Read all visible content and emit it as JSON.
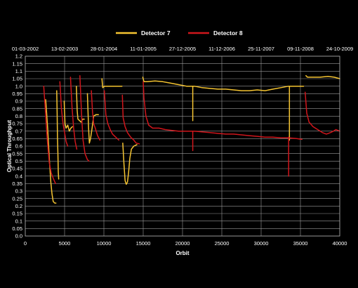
{
  "chart_data": {
    "type": "line",
    "xlabel": "Orbit",
    "ylabel": "Optical Throughput",
    "xlim": [
      0,
      40000
    ],
    "ylim": [
      0.0,
      1.2
    ],
    "x_ticks": [
      0,
      5000,
      10000,
      15000,
      20000,
      25000,
      30000,
      35000,
      40000
    ],
    "y_ticks": [
      0.0,
      0.05,
      0.1,
      0.15,
      0.2,
      0.25,
      0.3,
      0.35,
      0.4,
      0.45,
      0.5,
      0.55,
      0.6,
      0.65,
      0.7,
      0.75,
      0.8,
      0.85,
      0.9,
      0.95,
      1.0,
      1.05,
      1.1,
      1.15,
      1.2
    ],
    "y_tick_labels": [
      "0.0",
      "0.05",
      "0.1",
      "0.15",
      "0.2",
      "0.25",
      "0.3",
      "0.35",
      "0.4",
      "0.45",
      "0.5",
      "0.55",
      "0.6",
      "0.65",
      "0.7",
      "0.75",
      "0.8",
      "0.85",
      "0.9",
      "0.95",
      "1.0",
      "1.05",
      "1.1",
      "1.15",
      "1.2"
    ],
    "top_axis": {
      "labels": [
        "01-03-2002",
        "13-02-2003",
        "28-01-2004",
        "11-01-2005",
        "27-12-2005",
        "11-12-2006",
        "25-11-2007",
        "09-11-2008",
        "24-10-2009"
      ],
      "orbits": [
        0,
        5000,
        10000,
        15000,
        20000,
        25000,
        30000,
        35000,
        40000
      ]
    },
    "grid": true,
    "legend_position": "top-center",
    "series": [
      {
        "name": "Detector 7",
        "color": "#f5c431",
        "segments": [
          [
            [
              2600,
              0.91
            ],
            [
              2850,
              0.72
            ],
            [
              3050,
              0.52
            ],
            [
              3250,
              0.36
            ],
            [
              3400,
              0.28
            ],
            [
              3550,
              0.23
            ],
            [
              3750,
              0.22
            ],
            [
              3900,
              0.22
            ]
          ],
          [
            [
              4000,
              0.97
            ],
            [
              4050,
              0.82
            ],
            [
              4100,
              0.65
            ],
            [
              4150,
              0.55
            ],
            [
              4200,
              0.43
            ],
            [
              4250,
              0.38
            ]
          ],
          [
            [
              4950,
              0.9
            ],
            [
              5050,
              0.75
            ],
            [
              5200,
              0.72
            ],
            [
              5400,
              0.74
            ],
            [
              5600,
              0.7
            ],
            [
              5800,
              0.72
            ],
            [
              6000,
              0.73
            ]
          ],
          [
            [
              6500,
              1.0
            ],
            [
              6600,
              0.84
            ],
            [
              6700,
              0.78
            ],
            [
              6900,
              0.77
            ],
            [
              7100,
              0.76
            ],
            [
              7300,
              0.78
            ],
            [
              7500,
              0.78
            ]
          ],
          [
            [
              7900,
              0.95
            ],
            [
              8050,
              0.72
            ],
            [
              8150,
              0.62
            ],
            [
              8300,
              0.65
            ],
            [
              8500,
              0.72
            ],
            [
              8700,
              0.8
            ],
            [
              9000,
              0.81
            ],
            [
              9300,
              0.81
            ]
          ],
          [
            [
              9750,
              1.05
            ],
            [
              9850,
              0.99
            ],
            [
              10100,
              1.0
            ],
            [
              10500,
              1.0
            ],
            [
              11000,
              1.0
            ],
            [
              11500,
              1.0
            ],
            [
              12000,
              1.0
            ],
            [
              12300,
              1.0
            ]
          ],
          [
            [
              12400,
              0.62
            ],
            [
              12550,
              0.48
            ],
            [
              12700,
              0.37
            ],
            [
              12850,
              0.345
            ],
            [
              13000,
              0.36
            ],
            [
              13150,
              0.43
            ],
            [
              13300,
              0.52
            ],
            [
              13500,
              0.58
            ],
            [
              13800,
              0.6
            ],
            [
              14200,
              0.61
            ]
          ],
          [
            [
              14950,
              1.06
            ],
            [
              15100,
              1.03
            ],
            [
              15500,
              1.03
            ],
            [
              16500,
              1.035
            ],
            [
              17500,
              1.03
            ],
            [
              18500,
              1.02
            ],
            [
              19500,
              1.01
            ],
            [
              20500,
              1.0
            ],
            [
              21500,
              1.0
            ],
            [
              22500,
              0.99
            ],
            [
              23500,
              0.985
            ],
            [
              24500,
              0.98
            ],
            [
              25500,
              0.98
            ],
            [
              26500,
              0.975
            ],
            [
              27500,
              0.97
            ],
            [
              28500,
              0.97
            ],
            [
              29500,
              0.975
            ],
            [
              30500,
              0.97
            ],
            [
              31500,
              0.98
            ],
            [
              32500,
              0.99
            ],
            [
              33500,
              1.0
            ],
            [
              34500,
              1.0
            ],
            [
              35400,
              1.0
            ]
          ],
          [
            [
              21300,
              1.0
            ],
            [
              21300,
              0.77
            ]
          ],
          [
            [
              33600,
              1.0
            ],
            [
              33600,
              0.64
            ]
          ],
          [
            [
              35700,
              1.07
            ],
            [
              35900,
              1.06
            ],
            [
              36500,
              1.06
            ],
            [
              37500,
              1.06
            ],
            [
              38500,
              1.065
            ],
            [
              39300,
              1.06
            ],
            [
              40000,
              1.05
            ]
          ]
        ]
      },
      {
        "name": "Detector 8",
        "color": "#d0161c",
        "segments": [
          [
            [
              2350,
              1.0
            ],
            [
              2550,
              0.84
            ],
            [
              2800,
              0.64
            ],
            [
              3050,
              0.49
            ],
            [
              3300,
              0.42
            ],
            [
              3600,
              0.38
            ],
            [
              3850,
              0.35
            ]
          ],
          [
            [
              4400,
              1.03
            ],
            [
              4600,
              0.85
            ],
            [
              4800,
              0.75
            ],
            [
              5000,
              0.69
            ],
            [
              5200,
              0.63
            ],
            [
              5400,
              0.6
            ]
          ],
          [
            [
              5750,
              1.06
            ],
            [
              5950,
              0.86
            ],
            [
              6150,
              0.72
            ],
            [
              6350,
              0.63
            ],
            [
              6550,
              0.58
            ]
          ],
          [
            [
              6950,
              1.07
            ],
            [
              7150,
              0.82
            ],
            [
              7350,
              0.64
            ],
            [
              7600,
              0.55
            ],
            [
              7900,
              0.51
            ],
            [
              8100,
              0.5
            ]
          ],
          [
            [
              8400,
              0.97
            ],
            [
              8550,
              0.83
            ],
            [
              8700,
              0.75
            ],
            [
              8900,
              0.72
            ],
            [
              9200,
              0.67
            ],
            [
              9500,
              0.64
            ]
          ],
          [
            [
              10050,
              0.97
            ],
            [
              10250,
              0.81
            ],
            [
              10500,
              0.75
            ],
            [
              10800,
              0.71
            ],
            [
              11100,
              0.68
            ],
            [
              11500,
              0.66
            ],
            [
              11900,
              0.64
            ]
          ],
          [
            [
              12350,
              0.94
            ],
            [
              12450,
              0.79
            ],
            [
              12700,
              0.73
            ],
            [
              13000,
              0.69
            ],
            [
              13400,
              0.66
            ],
            [
              13800,
              0.64
            ],
            [
              14100,
              0.62
            ],
            [
              14500,
              0.615
            ]
          ],
          [
            [
              15000,
              1.03
            ],
            [
              15100,
              0.92
            ],
            [
              15350,
              0.8
            ],
            [
              15700,
              0.74
            ],
            [
              16200,
              0.72
            ],
            [
              17000,
              0.72
            ],
            [
              17800,
              0.71
            ],
            [
              18600,
              0.705
            ],
            [
              19500,
              0.7
            ],
            [
              20500,
              0.7
            ],
            [
              21500,
              0.7
            ],
            [
              22500,
              0.695
            ],
            [
              23500,
              0.69
            ],
            [
              24500,
              0.685
            ],
            [
              25500,
              0.68
            ],
            [
              26500,
              0.68
            ],
            [
              27500,
              0.675
            ],
            [
              28500,
              0.67
            ],
            [
              29500,
              0.665
            ],
            [
              30500,
              0.66
            ],
            [
              31500,
              0.66
            ],
            [
              32500,
              0.655
            ],
            [
              33500,
              0.655
            ],
            [
              34500,
              0.65
            ],
            [
              35200,
              0.645
            ]
          ],
          [
            [
              21300,
              0.7
            ],
            [
              21300,
              0.57
            ]
          ],
          [
            [
              33500,
              0.66
            ],
            [
              33500,
              0.4
            ]
          ],
          [
            [
              35600,
              0.96
            ],
            [
              35800,
              0.82
            ],
            [
              36100,
              0.76
            ],
            [
              36600,
              0.73
            ],
            [
              37200,
              0.71
            ],
            [
              37800,
              0.69
            ],
            [
              38300,
              0.68
            ],
            [
              38800,
              0.69
            ],
            [
              39200,
              0.7
            ],
            [
              39500,
              0.71
            ],
            [
              40000,
              0.7
            ]
          ]
        ]
      }
    ]
  }
}
